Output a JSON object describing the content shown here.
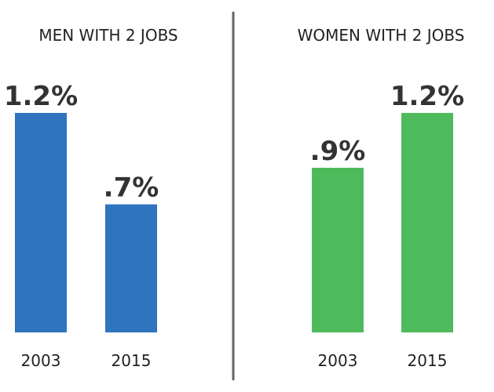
{
  "chart_data": [
    {
      "type": "bar",
      "title": "MEN WITH 2 JOBS",
      "categories": [
        "2003",
        "2015"
      ],
      "values": [
        1.2,
        0.7
      ],
      "data_labels": [
        "1.2%",
        ".7%"
      ],
      "color": "#2e75be",
      "xlabel": "",
      "ylabel": "",
      "ylim": [
        0,
        1.2
      ],
      "grid": false
    },
    {
      "type": "bar",
      "title": "WOMEN WITH 2 JOBS",
      "categories": [
        "2003",
        "2015"
      ],
      "values": [
        0.9,
        1.2
      ],
      "data_labels": [
        ".9%",
        "1.2%"
      ],
      "color": "#4fba5c",
      "xlabel": "",
      "ylabel": "",
      "ylim": [
        0,
        1.2
      ],
      "grid": false
    }
  ],
  "colors": {
    "divider": "#666666",
    "label_text": "#333333",
    "title_text": "#222222"
  }
}
